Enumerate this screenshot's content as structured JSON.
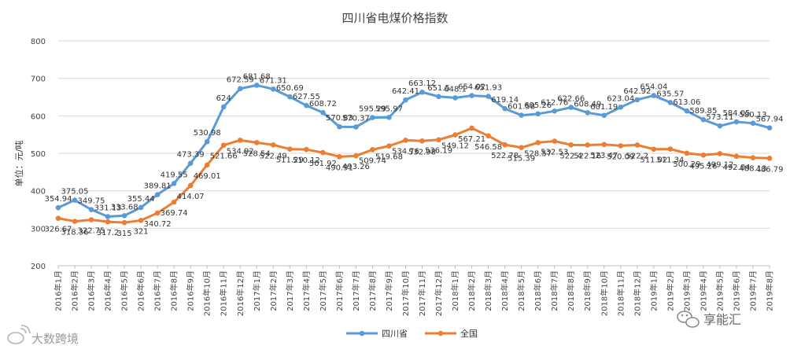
{
  "chart_data": {
    "type": "line",
    "title": "四川省电煤价格指数",
    "ylabel": "单位：元/吨",
    "xlabel": "",
    "ylim": [
      200,
      800
    ],
    "yticks": [
      "200",
      "300",
      "400",
      "500",
      "600",
      "700",
      "800"
    ],
    "grid": true,
    "legend_position": "bottom",
    "categories": [
      "2016年1月",
      "2016年2月",
      "2016年3月",
      "2016年4月",
      "2016年5月",
      "2016年6月",
      "2016年7月",
      "2016年8月",
      "2016年9月",
      "2016年10月",
      "2016年11月",
      "2016年12月",
      "2017年1月",
      "2017年2月",
      "2017年3月",
      "2017年4月",
      "2017年5月",
      "2017年6月",
      "2017年7月",
      "2017年8月",
      "2017年9月",
      "2017年10月",
      "2017年11月",
      "2017年12月",
      "2018年1月",
      "2018年2月",
      "2018年3月",
      "2018年4月",
      "2018年5月",
      "2018年6月",
      "2018年7月",
      "2018年8月",
      "2018年9月",
      "2018年10月",
      "2018年11月",
      "2018年12月",
      "2019年1月",
      "2019年2月",
      "2019年3月",
      "2019年4月",
      "2019年5月",
      "2019年6月",
      "2019年7月",
      "2019年8月"
    ],
    "series": [
      {
        "name": "四川省",
        "color": "#5b9bd5",
        "values": [
          354.94,
          375.05,
          349.75,
          331.13,
          333.68,
          355.44,
          389.81,
          419.55,
          473.39,
          530.98,
          624,
          672.59,
          681.68,
          671.31,
          650.69,
          627.55,
          608.72,
          570.83,
          570.37,
          595.29,
          595.97,
          642.41,
          663.12,
          651.5,
          648.1,
          654.02,
          651.93,
          619.14,
          601.58,
          605.26,
          612.76,
          622.66,
          608.49,
          601.19,
          623.04,
          642.92,
          654.04,
          635.57,
          613.06,
          589.85,
          573.11,
          584.05,
          580.13,
          567.94
        ]
      },
      {
        "name": "全国",
        "color": "#ed7d31",
        "values": [
          326.67,
          318.36,
          322.75,
          317.2,
          315,
          321,
          340.72,
          369.74,
          414.07,
          469.01,
          521.66,
          534.92,
          528.54,
          522.49,
          511.29,
          510.12,
          501.92,
          490.91,
          493.26,
          509.74,
          519.68,
          534.76,
          532.98,
          536.19,
          549.12,
          567.21,
          546.58,
          522.78,
          515.39,
          528.57,
          532.53,
          522.4,
          522.16,
          523.47,
          520.09,
          522.2,
          511.02,
          511.34,
          500.29,
          495.26,
          499.12,
          492.04,
          488.13,
          486.79
        ]
      }
    ]
  },
  "watermarks": {
    "left": "大数跨境",
    "right": "享能汇"
  }
}
